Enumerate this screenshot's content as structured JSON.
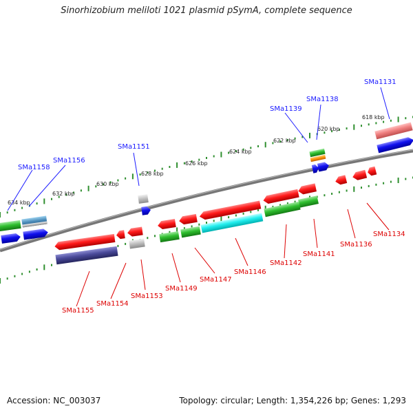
{
  "title": "Sinorhizobium meliloti 1021 plasmid pSymA, complete sequence",
  "footer": {
    "accession": "Accession: NC_003037",
    "summary": "Topology: circular; Length: 1,354,226 bp; Genes: 1,293"
  },
  "colors": {
    "backbone": "#777777",
    "tick": "#2f8f2f",
    "label_top": "#1a1aff",
    "label_bottom": "#dd0000"
  },
  "ticks": [
    "618 kbp",
    "620 kbp",
    "622 kbp",
    "624 kbp",
    "626 kbp",
    "628 kbp",
    "630 kbp",
    "632 kbp",
    "634 kbp"
  ],
  "labels_top": [
    "SMa1131",
    "SMa1138",
    "SMa1139",
    "SMa1151",
    "SMa1156",
    "SMa1158"
  ],
  "labels_bottom": [
    "SMa1134",
    "SMa1136",
    "SMa1141",
    "SMa1142",
    "SMa1146",
    "SMa1147",
    "SMa1149",
    "SMa1153",
    "SMa1154",
    "SMa1155"
  ]
}
